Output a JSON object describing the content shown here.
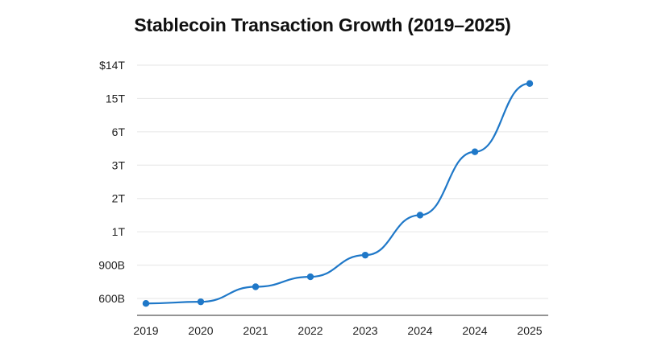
{
  "chart_data": {
    "type": "line",
    "title": "Stablecoin Transaction Growth (2019–2025)",
    "xlabel": "",
    "ylabel": "",
    "x": [
      "2019",
      "2020",
      "2021",
      "2022",
      "2023",
      "2024",
      "2024",
      "2025"
    ],
    "y_tick_labels": [
      "600B",
      "900B",
      "1T",
      "2T",
      "3T",
      "6T",
      "15T",
      "$14T"
    ],
    "y_scale": "categorical-ticks",
    "ylim_tick_index": [
      0,
      7
    ],
    "series": [
      {
        "values_in_tick_index_units": [
          -0.15,
          -0.1,
          0.35,
          0.65,
          1.3,
          2.5,
          4.4,
          6.45
        ],
        "color": "#1f78c8"
      }
    ],
    "grid": true,
    "legend": "none"
  }
}
